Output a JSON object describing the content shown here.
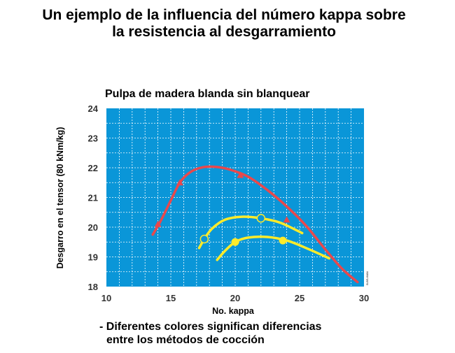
{
  "header": {
    "title_line1": "Un ejemplo de la influencia del número kappa sobre",
    "title_line2": "la resistencia al desgarramiento"
  },
  "chart_data": {
    "type": "line",
    "title": "Pulpa de madera blanda sin blanquear",
    "xlabel": "No. kappa",
    "ylabel": "Desgarro en el tensor (80 kNm/kg)",
    "xlim": [
      10,
      30
    ],
    "ylim": [
      18,
      24
    ],
    "x_ticks": [
      "10",
      "15",
      "20",
      "25",
      "30"
    ],
    "y_ticks": [
      "18",
      "19",
      "20",
      "21",
      "22",
      "23",
      "24"
    ],
    "grid": true,
    "background_color": "#0a96d8",
    "grid_color": "#ffffff",
    "series": [
      {
        "color": "#e8484c",
        "marker": "triangle",
        "points": [
          [
            13.6,
            19.75
          ],
          [
            14.2,
            20.2
          ],
          [
            15,
            20.9
          ],
          [
            15.7,
            21.5
          ],
          [
            16.5,
            21.85
          ],
          [
            17.5,
            22.02
          ],
          [
            18.5,
            22.03
          ],
          [
            19.5,
            21.95
          ],
          [
            21,
            21.7
          ],
          [
            22.5,
            21.25
          ],
          [
            24,
            20.7
          ],
          [
            25.5,
            20.05
          ],
          [
            27,
            19.25
          ],
          [
            28.3,
            18.6
          ],
          [
            29.5,
            18.15
          ]
        ],
        "marker_points": [
          [
            14,
            20.1
          ],
          [
            15.7,
            21.5
          ],
          [
            20.4,
            21.75
          ],
          [
            24,
            20.25
          ]
        ]
      },
      {
        "color": "#ffeb2a",
        "marker": "circle-open",
        "points": [
          [
            17.2,
            19.3
          ],
          [
            17.6,
            19.6
          ],
          [
            18.2,
            19.95
          ],
          [
            19.2,
            20.25
          ],
          [
            20.5,
            20.35
          ],
          [
            22,
            20.3
          ],
          [
            23.5,
            20.15
          ],
          [
            25.2,
            19.8
          ]
        ],
        "marker_points": [
          [
            17.6,
            19.6
          ],
          [
            22,
            20.3
          ]
        ]
      },
      {
        "color": "#ffeb2a",
        "marker": "circle-filled",
        "points": [
          [
            18.6,
            18.9
          ],
          [
            19.2,
            19.2
          ],
          [
            20,
            19.5
          ],
          [
            21,
            19.65
          ],
          [
            22.5,
            19.67
          ],
          [
            24,
            19.55
          ],
          [
            25.5,
            19.3
          ],
          [
            27.3,
            18.95
          ]
        ],
        "marker_points": [
          [
            20,
            19.5
          ],
          [
            23.7,
            19.55
          ]
        ]
      }
    ],
    "side_code": "B-BS-6484"
  },
  "note": {
    "line1": "- Diferentes colores significan diferencias",
    "line2": "entre los métodos de cocción"
  }
}
